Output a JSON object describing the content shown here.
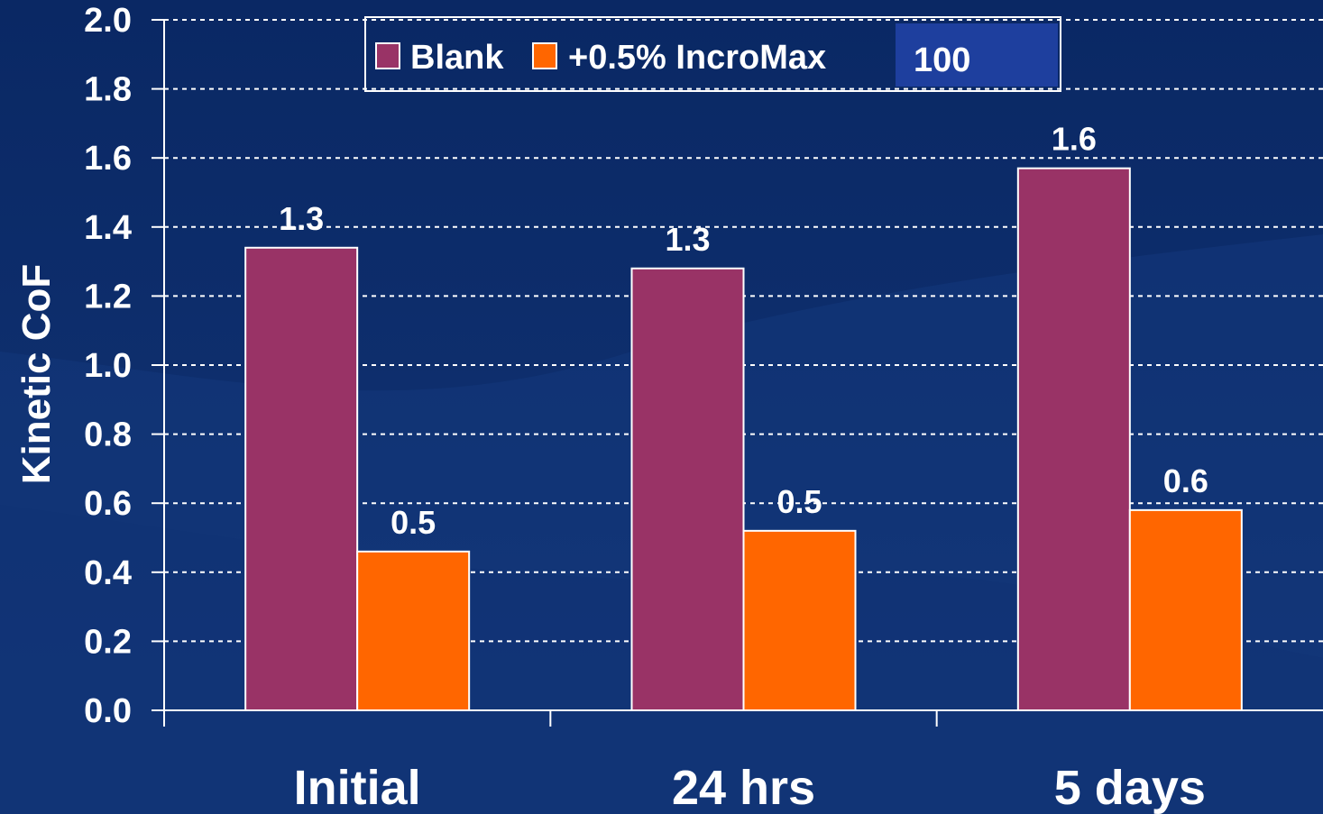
{
  "colors": {
    "background": "#0b2a66",
    "grid": "#ffffff",
    "blank": "#993366",
    "incromax": "#ff6600",
    "legend_highlight": "#1e3f9e"
  },
  "chart_data": {
    "type": "bar",
    "categories": [
      "Initial",
      "24 hrs",
      "5 days"
    ],
    "series": [
      {
        "name": "Blank",
        "values": [
          1.34,
          1.28,
          1.57
        ],
        "labels": [
          "1.3",
          "1.3",
          "1.6"
        ]
      },
      {
        "name": "+0.5% IncroMax 100",
        "values": [
          0.46,
          0.52,
          0.58
        ],
        "labels": [
          "0.5",
          "0.5",
          "0.6"
        ]
      }
    ],
    "ylabel": "Kinetic CoF",
    "xlabel": "",
    "ylim": [
      0,
      2.0
    ],
    "yticks": [
      "0.0",
      "0.2",
      "0.4",
      "0.6",
      "0.8",
      "1.0",
      "1.2",
      "1.4",
      "1.6",
      "1.8",
      "2.0"
    ],
    "grid": true,
    "legend_position": "top-center",
    "legend": {
      "blank_label": "Blank",
      "incromax_label_main": "+0.5% IncroMax",
      "incromax_label_number": "100"
    }
  }
}
